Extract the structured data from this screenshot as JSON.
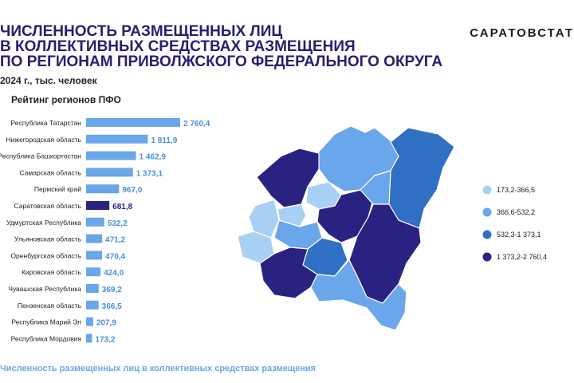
{
  "header": {
    "title_lines": [
      "ЧИСЛЕННОСТЬ РАЗМЕЩЕННЫХ ЛИЦ",
      "В КОЛЛЕКТИВНЫХ СРЕДСТВАХ РАЗМЕЩЕНИЯ",
      "ПО РЕГИОНАМ ПРИВОЛЖСКОГО ФЕДЕРАЛЬНОГО ОКРУГА"
    ],
    "subtitle": "2024 г., тыс. человек",
    "brand": "САРАТОВСТАТ",
    "rating_title": "Рейтинг регионов ПФО",
    "footer": "Численность размещенных лиц в коллективных средствах размещения"
  },
  "chart_data": {
    "type": "bar",
    "orientation": "horizontal",
    "categories": [
      "Республика Татарстан",
      "Нижегородская область",
      "Республика Башкортостан",
      "Самарская область",
      "Пермский край",
      "Саратовская область",
      "Удмуртская Республика",
      "Ульяновская область",
      "Оренбургская область",
      "Кировская область",
      "Чувашская Республика",
      "Пензенская область",
      "Республика Марий Эл",
      "Республика Мордовия"
    ],
    "values": [
      2760.4,
      1811.9,
      1462.9,
      1373.1,
      967.0,
      681.8,
      532.2,
      471.2,
      470.4,
      424.0,
      369.2,
      366.5,
      207.9,
      173.2
    ],
    "value_labels": [
      "2 760,4",
      "1 811,9",
      "1 462,9",
      "1 373,1",
      "967,0",
      "681,8",
      "532,2",
      "471,2",
      "470,4",
      "424,0",
      "369,2",
      "366,5",
      "207,9",
      "173,2"
    ],
    "highlight_index": 5,
    "colors": {
      "bar": "#6aa6ea",
      "highlight": "#2a2280",
      "value_text": "#4a8fdd",
      "highlight_text": "#2a2280"
    },
    "xlim": [
      0,
      2760.4
    ]
  },
  "map_legend": [
    {
      "label": "173,2-366,5",
      "color": "#a9d0f5"
    },
    {
      "label": "366,6-532,2",
      "color": "#6aa6ea"
    },
    {
      "label": "532,3-1 373,1",
      "color": "#2f6fc4"
    },
    {
      "label": "1 373,2-2 760,4",
      "color": "#2a2280"
    }
  ]
}
